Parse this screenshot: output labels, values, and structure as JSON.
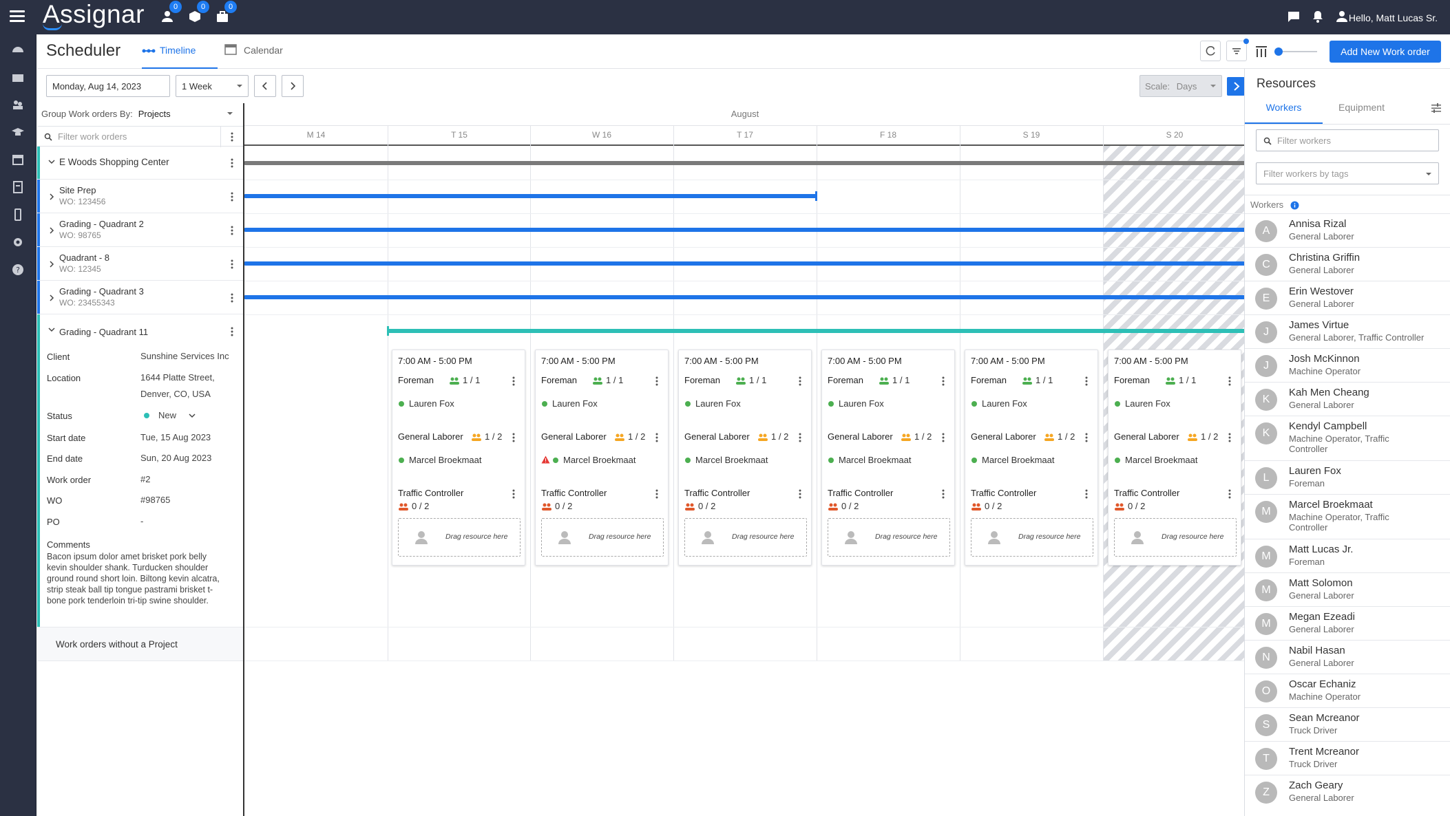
{
  "topbar": {
    "logo": "Assignar",
    "badges": [
      "0",
      "0",
      "0"
    ],
    "greeting": "Hello, Matt Lucas Sr."
  },
  "header": {
    "title": "Scheduler",
    "tabs": [
      "Timeline",
      "Calendar"
    ],
    "add_button": "Add New Work order"
  },
  "controls": {
    "date": "Monday, Aug 14, 2023",
    "range": "1 Week",
    "scale_label": "Scale:",
    "scale_value": "Days"
  },
  "left": {
    "group_by_label": "Group Work orders By:",
    "group_by_value": "Projects",
    "filter_placeholder": "Filter work orders",
    "project": "E Woods Shopping Center",
    "work_orders": [
      {
        "name": "Site Prep",
        "wo": "WO: 123456"
      },
      {
        "name": "Grading - Quadrant 2",
        "wo": "WO: 98765"
      },
      {
        "name": "Quadrant - 8",
        "wo": "WO: 12345"
      },
      {
        "name": "Grading - Quadrant 3",
        "wo": "WO: 23455343"
      }
    ],
    "expanded": "Grading - Quadrant 11",
    "details": {
      "client_label": "Client",
      "client": "Sunshine Services Inc",
      "location_label": "Location",
      "location_1": "1644 Platte Street,",
      "location_2": "Denver, CO, USA",
      "status_label": "Status",
      "status": "New",
      "start_label": "Start date",
      "start": "Tue, 15 Aug 2023",
      "end_label": "End date",
      "end": "Sun, 20 Aug 2023",
      "workorder_label": "Work order",
      "workorder": "#2",
      "wo_label": "WO",
      "wo": "#98765",
      "po_label": "PO",
      "po": "-",
      "comments_label": "Comments",
      "comments": "Bacon ipsum dolor amet brisket pork belly kevin shoulder shank. Turducken shoulder ground round short loin. Biltong kevin alcatra, strip steak ball tip tongue pastrami brisket t-bone pork tenderloin tri-tip swine shoulder."
    },
    "no_project": "Work orders without a Project"
  },
  "timeline": {
    "month": "August",
    "days": [
      "M 14",
      "T 15",
      "W 16",
      "T 17",
      "F 18",
      "S 19",
      "S 20"
    ],
    "cards": [
      {
        "time": "7:00 AM - 5:00 PM",
        "foreman": "Foreman",
        "foreman_count": "1 / 1",
        "foreman_person": "Lauren Fox",
        "laborer": "General Laborer",
        "laborer_count": "1 / 2",
        "laborer_person": "Marcel Broekmaat",
        "traffic": "Traffic Controller",
        "traffic_count": "0 / 2",
        "drag": "Drag resource here"
      },
      {
        "time": "7:00 AM - 5:00 PM",
        "foreman": "Foreman",
        "foreman_count": "1 / 1",
        "foreman_person": "Lauren Fox",
        "laborer": "General Laborer",
        "laborer_count": "1 / 2",
        "laborer_person": "Marcel Broekmaat",
        "traffic": "Traffic Controller",
        "traffic_count": "0 / 2",
        "drag": "Drag resource here"
      },
      {
        "time": "7:00 AM - 5:00 PM",
        "foreman": "Foreman",
        "foreman_count": "1 / 1",
        "foreman_person": "Lauren Fox",
        "laborer": "General Laborer",
        "laborer_count": "1 / 2",
        "laborer_person": "Marcel Broekmaat",
        "traffic": "Traffic Controller",
        "traffic_count": "0 / 2",
        "drag": "Drag resource here"
      },
      {
        "time": "7:00 AM - 5:00 PM",
        "foreman": "Foreman",
        "foreman_count": "1 / 1",
        "foreman_person": "Lauren Fox",
        "laborer": "General Laborer",
        "laborer_count": "1 / 2",
        "laborer_person": "Marcel Broekmaat",
        "traffic": "Traffic Controller",
        "traffic_count": "0 / 2",
        "drag": "Drag resource here"
      },
      {
        "time": "7:00 AM - 5:00 PM",
        "foreman": "Foreman",
        "foreman_count": "1 / 1",
        "foreman_person": "Lauren Fox",
        "laborer": "General Laborer",
        "laborer_count": "1 / 2",
        "laborer_person": "Marcel Broekmaat",
        "traffic": "Traffic Controller",
        "traffic_count": "0 / 2",
        "drag": "Drag resource here"
      },
      {
        "time": "7:00 AM - 5:00 PM",
        "foreman": "Foreman",
        "foreman_count": "1 / 1",
        "foreman_person": "Lauren Fox",
        "laborer": "General Laborer",
        "laborer_count": "1 / 2",
        "laborer_person": "Marcel Broekmaat",
        "traffic": "Traffic Controller",
        "traffic_count": "0 / 2",
        "drag": "Drag resource here"
      }
    ]
  },
  "resources": {
    "title": "Resources",
    "tabs": [
      "Workers",
      "Equipment"
    ],
    "filter_placeholder": "Filter workers",
    "tags_placeholder": "Filter workers by tags",
    "workers_label": "Workers",
    "workers": [
      {
        "initial": "A",
        "name": "Annisa Rizal",
        "role": "General Laborer"
      },
      {
        "initial": "C",
        "name": "Christina Griffin",
        "role": "General Laborer"
      },
      {
        "initial": "E",
        "name": "Erin Westover",
        "role": "General Laborer"
      },
      {
        "initial": "J",
        "name": "James Virtue",
        "role": "General Laborer, Traffic Controller"
      },
      {
        "initial": "J",
        "name": "Josh McKinnon",
        "role": "Machine Operator"
      },
      {
        "initial": "K",
        "name": "Kah Men Cheang",
        "role": "General Laborer"
      },
      {
        "initial": "K",
        "name": "Kendyl Campbell",
        "role": "Machine Operator, Traffic Controller"
      },
      {
        "initial": "L",
        "name": "Lauren Fox",
        "role": "Foreman"
      },
      {
        "initial": "M",
        "name": "Marcel Broekmaat",
        "role": "Machine Operator, Traffic Controller"
      },
      {
        "initial": "M",
        "name": "Matt Lucas Jr.",
        "role": "Foreman"
      },
      {
        "initial": "M",
        "name": "Matt Solomon",
        "role": "General Laborer"
      },
      {
        "initial": "M",
        "name": "Megan Ezeadi",
        "role": "General Laborer"
      },
      {
        "initial": "N",
        "name": "Nabil Hasan",
        "role": "General Laborer"
      },
      {
        "initial": "O",
        "name": "Oscar Echaniz",
        "role": "Machine Operator"
      },
      {
        "initial": "S",
        "name": "Sean Mcreanor",
        "role": "Truck Driver"
      },
      {
        "initial": "T",
        "name": "Trent Mcreanor",
        "role": "Truck Driver"
      },
      {
        "initial": "Z",
        "name": "Zach Geary",
        "role": "General Laborer"
      }
    ]
  },
  "colors": {
    "navy": "#2b3143",
    "accent_blue": "#1e74e8",
    "teal": "#2dbfb6",
    "project_bar": "#7a7a7a",
    "ok": "#4caf50",
    "warn": "#e53935",
    "short": "#e0582b",
    "pending": "#f5a623"
  }
}
